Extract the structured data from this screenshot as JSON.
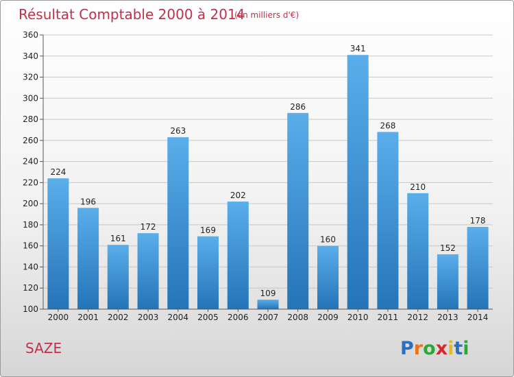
{
  "chart_data": {
    "type": "bar",
    "title": "Résultat Comptable 2000 à 2014",
    "subtitle": "(en milliers d'€)",
    "categories": [
      "2000",
      "2001",
      "2002",
      "2003",
      "2004",
      "2005",
      "2006",
      "2007",
      "2008",
      "2009",
      "2010",
      "2011",
      "2012",
      "2013",
      "2014"
    ],
    "values": [
      224,
      196,
      161,
      172,
      263,
      169,
      202,
      109,
      286,
      160,
      341,
      268,
      210,
      152,
      178
    ],
    "ylim": [
      100,
      360
    ],
    "yticks": [
      100,
      120,
      140,
      160,
      180,
      200,
      220,
      240,
      260,
      280,
      300,
      320,
      340,
      360
    ],
    "xlabel": "",
    "ylabel": "",
    "grid": true,
    "bar_color": "#3a8fd6"
  },
  "commune": "SAZE",
  "logo": {
    "text": "Proxiti",
    "letters": [
      "P",
      "r",
      "o",
      "x",
      "i",
      "t",
      "i"
    ],
    "colors": [
      "#2a6fc0",
      "#e8731d",
      "#2aa838",
      "#d8282e",
      "#e8b81d",
      "#2a6fc0",
      "#2aa838"
    ]
  }
}
